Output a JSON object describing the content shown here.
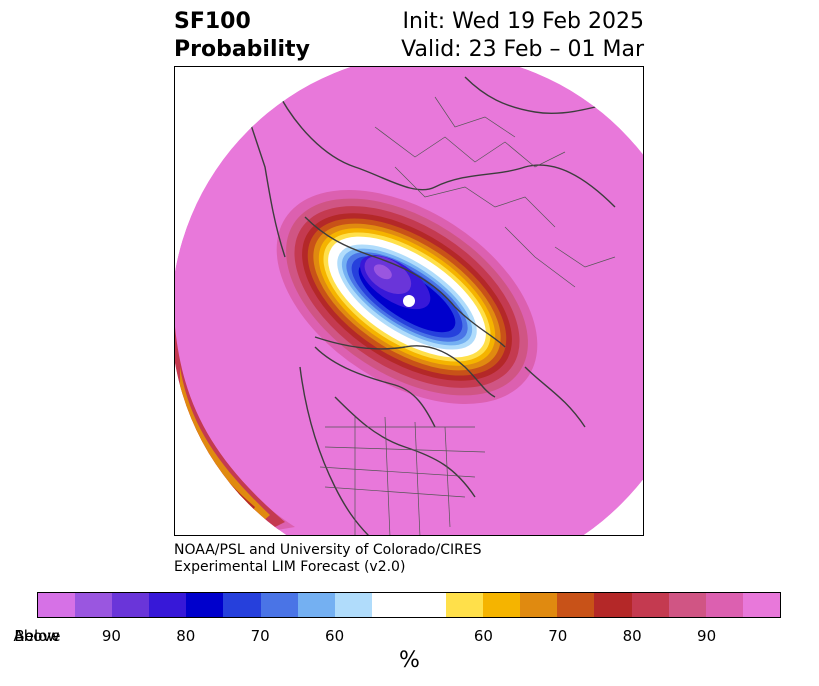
{
  "title": {
    "variable": "SF100",
    "product": "Probability",
    "init": "Init: Wed 19 Feb 2025",
    "valid": "Valid: 23 Feb – 01 Mar"
  },
  "credit": {
    "line1": "NOAA/PSL and University of Colorado/CIRES",
    "line2": "Experimental LIM Forecast (v2.0)"
  },
  "colorbar": {
    "unit": "%",
    "colors": [
      "#d671e6",
      "#9a56e0",
      "#6a35d9",
      "#3718d8",
      "#0000cc",
      "#2640dc",
      "#4a74e6",
      "#74b0f2",
      "#b0dcfb",
      "#ffffff",
      "#ffe04a",
      "#f5b400",
      "#e08a10",
      "#c85218",
      "#b42828",
      "#c43a50",
      "#d05584",
      "#dc60b0",
      "#e878da"
    ],
    "labels": [
      "Below",
      "90",
      "80",
      "70",
      "60",
      "60",
      "70",
      "80",
      "90",
      "Above"
    ]
  },
  "map": {
    "projection": "north-polar-stereographic",
    "background_color": "#e878da",
    "anomaly": "below-normal probability centered over the Canadian Arctic archipelago and Hudson Bay region"
  }
}
